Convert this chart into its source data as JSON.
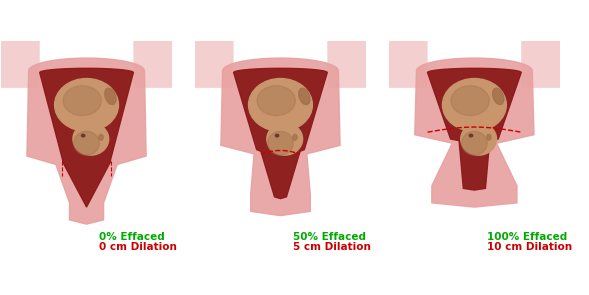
{
  "background_color": "#ffffff",
  "panels": [
    {
      "label_effaced": "0% Effaced",
      "label_dilation": "0 cm Dilation",
      "effaced_color": "#00aa00",
      "dilation_color": "#cc0000",
      "cervix_opening": 0.0,
      "effacement": 0.0
    },
    {
      "label_effaced": "50% Effaced",
      "label_dilation": "5 cm Dilation",
      "effaced_color": "#00aa00",
      "dilation_color": "#cc0000",
      "cervix_opening": 0.5,
      "effacement": 0.5
    },
    {
      "label_effaced": "100% Effaced",
      "label_dilation": "10 cm Dilation",
      "effaced_color": "#00aa00",
      "dilation_color": "#cc0000",
      "cervix_opening": 1.0,
      "effacement": 1.0
    }
  ],
  "uterus_wall_color": "#e8a0a0",
  "uterus_inner_color": "#8b1a1a",
  "baby_skin_color": "#c8956c",
  "baby_dark_color": "#a0704a",
  "cervix_color": "#e8a0a0",
  "cervix_inner_color": "#c06060",
  "label_fontsize": 7.5,
  "figsize": [
    5.89,
    2.95
  ],
  "dpi": 100
}
